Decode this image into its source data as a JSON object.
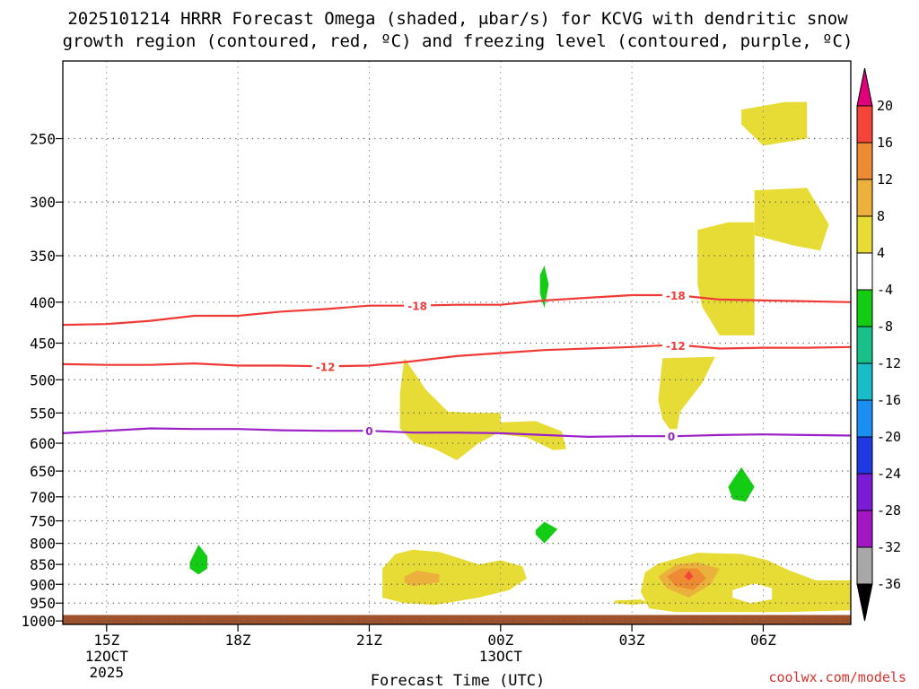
{
  "chart_data": {
    "type": "heatmap",
    "title_lines": [
      "2025101214 HRRR Forecast Omega (shaded, μbar/s) for KCVG with dendritic snow",
      "growth region (contoured, red, ºC) and freezing level (contoured, purple, ºC)"
    ],
    "xlabel": "Forecast Time (UTC)",
    "credit": "coolwx.com/models",
    "x_ticks": [
      {
        "x": 15,
        "lines": [
          "15Z",
          "12OCT",
          "2025"
        ]
      },
      {
        "x": 18,
        "lines": [
          "18Z"
        ]
      },
      {
        "x": 21,
        "lines": [
          "21Z"
        ]
      },
      {
        "x": 24,
        "lines": [
          "00Z",
          "13OCT"
        ]
      },
      {
        "x": 27,
        "lines": [
          "03Z"
        ]
      },
      {
        "x": 30,
        "lines": [
          "06Z"
        ]
      }
    ],
    "y_ticks": [
      250,
      300,
      350,
      400,
      450,
      500,
      550,
      600,
      650,
      700,
      750,
      800,
      850,
      900,
      950,
      1000
    ],
    "xlim": [
      14,
      32
    ],
    "ylim": [
      1010,
      200
    ],
    "y_scale": "log",
    "grid": true,
    "colorbar": {
      "labels": [
        "20",
        "16",
        "12",
        "8",
        "4",
        "-4",
        "-8",
        "-12",
        "-16",
        "-20",
        "-24",
        "-28",
        "-32",
        "-36"
      ],
      "bins": [
        {
          "lo": 20,
          "hi": null,
          "color": "#e0007a"
        },
        {
          "lo": 16,
          "hi": 20,
          "color": "#f5453a"
        },
        {
          "lo": 12,
          "hi": 16,
          "color": "#ed8a33"
        },
        {
          "lo": 8,
          "hi": 12,
          "color": "#ebb13c"
        },
        {
          "lo": 4,
          "hi": 8,
          "color": "#e7dc35"
        },
        {
          "lo": -4,
          "hi": 4,
          "color": "#ffffff"
        },
        {
          "lo": -8,
          "hi": -4,
          "color": "#15cc15"
        },
        {
          "lo": -12,
          "hi": -8,
          "color": "#19c08a"
        },
        {
          "lo": -16,
          "hi": -12,
          "color": "#19bcc7"
        },
        {
          "lo": -20,
          "hi": -16,
          "color": "#1b8ef2"
        },
        {
          "lo": -24,
          "hi": -20,
          "color": "#1e38e2"
        },
        {
          "lo": -28,
          "hi": -24,
          "color": "#7a1bd6"
        },
        {
          "lo": -32,
          "hi": -28,
          "color": "#a216c4"
        },
        {
          "lo": -36,
          "hi": -32,
          "color": "#a8a8a8"
        },
        {
          "lo": null,
          "hi": -36,
          "color": "#000000"
        }
      ]
    },
    "ground_color": "#a0522d",
    "contours": [
      {
        "label": "-18",
        "color": "#f03a37",
        "points": [
          [
            14,
            427
          ],
          [
            15,
            426
          ],
          [
            16,
            422
          ],
          [
            17,
            416
          ],
          [
            18,
            416
          ],
          [
            19,
            411
          ],
          [
            20,
            408
          ],
          [
            21,
            404
          ],
          [
            22,
            404
          ],
          [
            23,
            403
          ],
          [
            24,
            403
          ],
          [
            25,
            398
          ],
          [
            26,
            395
          ],
          [
            27,
            392
          ],
          [
            28,
            392
          ],
          [
            29,
            397
          ],
          [
            30,
            398
          ],
          [
            31,
            399
          ],
          [
            32,
            400
          ]
        ],
        "label_at": [
          [
            22.1,
            404
          ],
          [
            28.0,
            392
          ]
        ]
      },
      {
        "label": "-12",
        "color": "#f03a37",
        "points": [
          [
            14,
            478
          ],
          [
            15,
            479
          ],
          [
            16,
            479
          ],
          [
            17,
            477
          ],
          [
            18,
            480
          ],
          [
            19,
            480
          ],
          [
            20,
            481
          ],
          [
            21,
            480
          ],
          [
            22,
            474
          ],
          [
            23,
            467
          ],
          [
            24,
            463
          ],
          [
            25,
            459
          ],
          [
            26,
            457
          ],
          [
            27,
            455
          ],
          [
            28,
            452
          ],
          [
            29,
            457
          ],
          [
            30,
            456
          ],
          [
            31,
            456
          ],
          [
            32,
            455
          ]
        ],
        "label_at": [
          [
            20.0,
            481
          ],
          [
            28.0,
            453
          ]
        ]
      },
      {
        "label": "0",
        "color": "#9d21c9",
        "points": [
          [
            14,
            583
          ],
          [
            15,
            579
          ],
          [
            16,
            575
          ],
          [
            17,
            576
          ],
          [
            18,
            576
          ],
          [
            19,
            578
          ],
          [
            20,
            579
          ],
          [
            21,
            579
          ],
          [
            22,
            582
          ],
          [
            23,
            582
          ],
          [
            24,
            583
          ],
          [
            25,
            586
          ],
          [
            26,
            589
          ],
          [
            27,
            588
          ],
          [
            28,
            588
          ],
          [
            29,
            586
          ],
          [
            30,
            585
          ],
          [
            31,
            586
          ],
          [
            32,
            587
          ]
        ],
        "label_at": [
          [
            21.0,
            579
          ],
          [
            27.9,
            588
          ]
        ]
      }
    ],
    "regions": [
      {
        "value": 6,
        "points": [
          [
            21.8,
            470
          ],
          [
            22.3,
            515
          ],
          [
            22.8,
            548
          ],
          [
            23.5,
            550
          ],
          [
            24.0,
            550
          ],
          [
            24.0,
            580
          ],
          [
            23.5,
            600
          ],
          [
            23.0,
            630
          ],
          [
            22.5,
            610
          ],
          [
            22.0,
            598
          ],
          [
            21.7,
            575
          ],
          [
            21.7,
            520
          ]
        ]
      },
      {
        "value": 6,
        "points": [
          [
            24.0,
            565
          ],
          [
            24.8,
            563
          ],
          [
            25.4,
            580
          ],
          [
            25.5,
            610
          ],
          [
            25.2,
            612
          ],
          [
            24.6,
            590
          ],
          [
            24.0,
            585
          ]
        ]
      },
      {
        "value": 6,
        "points": [
          [
            27.7,
            470
          ],
          [
            28.9,
            468
          ],
          [
            28.6,
            505
          ],
          [
            28.1,
            548
          ],
          [
            28.0,
            590
          ],
          [
            27.7,
            560
          ],
          [
            27.6,
            530
          ]
        ]
      },
      {
        "value": 6,
        "points": [
          [
            28.5,
            325
          ],
          [
            29.2,
            318
          ],
          [
            29.8,
            318
          ],
          [
            29.8,
            440
          ],
          [
            29.0,
            440
          ],
          [
            28.6,
            405
          ],
          [
            28.5,
            380
          ]
        ]
      },
      {
        "value": 6,
        "points": [
          [
            29.8,
            290
          ],
          [
            31.0,
            288
          ],
          [
            31.5,
            320
          ],
          [
            31.3,
            345
          ],
          [
            30.7,
            340
          ],
          [
            29.8,
            330
          ]
        ]
      },
      {
        "value": 6,
        "points": [
          [
            29.5,
            230
          ],
          [
            30.5,
            225
          ],
          [
            31.0,
            225
          ],
          [
            31.0,
            250
          ],
          [
            30.0,
            255
          ],
          [
            29.5,
            240
          ]
        ]
      },
      {
        "value": 6,
        "points": [
          [
            21.3,
            860
          ],
          [
            21.6,
            825
          ],
          [
            22.0,
            815
          ],
          [
            22.6,
            820
          ],
          [
            23.5,
            850
          ],
          [
            24.0,
            840
          ],
          [
            24.5,
            855
          ],
          [
            24.6,
            885
          ],
          [
            24.2,
            915
          ],
          [
            23.5,
            935
          ],
          [
            22.5,
            955
          ],
          [
            21.8,
            950
          ],
          [
            21.3,
            935
          ]
        ]
      },
      {
        "value": 6,
        "points": [
          [
            26.6,
            943
          ],
          [
            27.2,
            940
          ],
          [
            27.4,
            950
          ],
          [
            27.0,
            955
          ],
          [
            26.6,
            950
          ]
        ]
      },
      {
        "value": 6,
        "points": [
          [
            27.3,
            870
          ],
          [
            27.6,
            848
          ],
          [
            28.5,
            822
          ],
          [
            29.5,
            825
          ],
          [
            30.1,
            840
          ],
          [
            30.6,
            865
          ],
          [
            31.2,
            890
          ],
          [
            32.0,
            890
          ],
          [
            32.0,
            970
          ],
          [
            30.5,
            975
          ],
          [
            29.0,
            975
          ],
          [
            28.0,
            975
          ],
          [
            27.4,
            965
          ],
          [
            27.2,
            920
          ]
        ]
      },
      {
        "value": 0,
        "points": [
          [
            29.3,
            915
          ],
          [
            29.8,
            898
          ],
          [
            30.2,
            910
          ],
          [
            30.2,
            940
          ],
          [
            29.7,
            950
          ],
          [
            29.3,
            935
          ]
        ]
      },
      {
        "value": 10,
        "points": [
          [
            21.8,
            880
          ],
          [
            22.1,
            865
          ],
          [
            22.6,
            875
          ],
          [
            22.6,
            895
          ],
          [
            22.0,
            905
          ],
          [
            21.8,
            895
          ]
        ]
      },
      {
        "value": 10,
        "points": [
          [
            27.6,
            880
          ],
          [
            28.0,
            850
          ],
          [
            28.5,
            845
          ],
          [
            29.0,
            860
          ],
          [
            28.8,
            900
          ],
          [
            28.3,
            935
          ],
          [
            27.8,
            910
          ]
        ]
      },
      {
        "value": 14,
        "points": [
          [
            27.8,
            880
          ],
          [
            28.1,
            860
          ],
          [
            28.5,
            860
          ],
          [
            28.7,
            885
          ],
          [
            28.4,
            915
          ],
          [
            28.0,
            905
          ]
        ]
      },
      {
        "value": 18,
        "points": [
          [
            28.2,
            880
          ],
          [
            28.3,
            866
          ],
          [
            28.4,
            880
          ],
          [
            28.3,
            890
          ]
        ]
      },
      {
        "value": -6,
        "points": [
          [
            16.9,
            845
          ],
          [
            17.1,
            803
          ],
          [
            17.3,
            830
          ],
          [
            17.3,
            860
          ],
          [
            17.1,
            875
          ],
          [
            16.9,
            860
          ]
        ]
      },
      {
        "value": -6,
        "points": [
          [
            24.9,
            370
          ],
          [
            25.0,
            360
          ],
          [
            25.1,
            380
          ],
          [
            25.0,
            407
          ],
          [
            24.9,
            390
          ]
        ]
      },
      {
        "value": -6,
        "points": [
          [
            24.8,
            770
          ],
          [
            25.0,
            752
          ],
          [
            25.3,
            768
          ],
          [
            25.0,
            800
          ],
          [
            24.8,
            780
          ]
        ]
      },
      {
        "value": -6,
        "points": [
          [
            29.2,
            680
          ],
          [
            29.5,
            643
          ],
          [
            29.8,
            680
          ],
          [
            29.6,
            710
          ],
          [
            29.3,
            705
          ]
        ]
      }
    ]
  }
}
